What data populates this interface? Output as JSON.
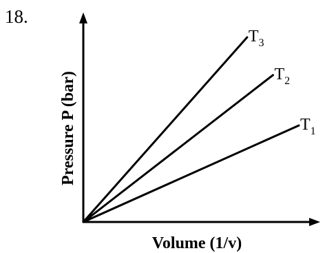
{
  "question_number": "18.",
  "chart_data": {
    "type": "line",
    "xlabel": "Volume (1/v)",
    "ylabel": "Pressure P (bar)",
    "xlim": [
      0,
      1
    ],
    "ylim": [
      0,
      1
    ],
    "grid": false,
    "series": [
      {
        "name": "T3",
        "label_main": "T",
        "label_sub": "3",
        "x": [
          0,
          0.76
        ],
        "y": [
          0,
          0.905
        ],
        "color": "#000000"
      },
      {
        "name": "T2",
        "label_main": "T",
        "label_sub": "2",
        "x": [
          0,
          0.88
        ],
        "y": [
          0,
          0.72
        ],
        "color": "#000000"
      },
      {
        "name": "T1",
        "label_main": "T",
        "label_sub": "1",
        "x": [
          0,
          1.0
        ],
        "y": [
          0,
          0.473
        ],
        "color": "#000000"
      }
    ]
  }
}
